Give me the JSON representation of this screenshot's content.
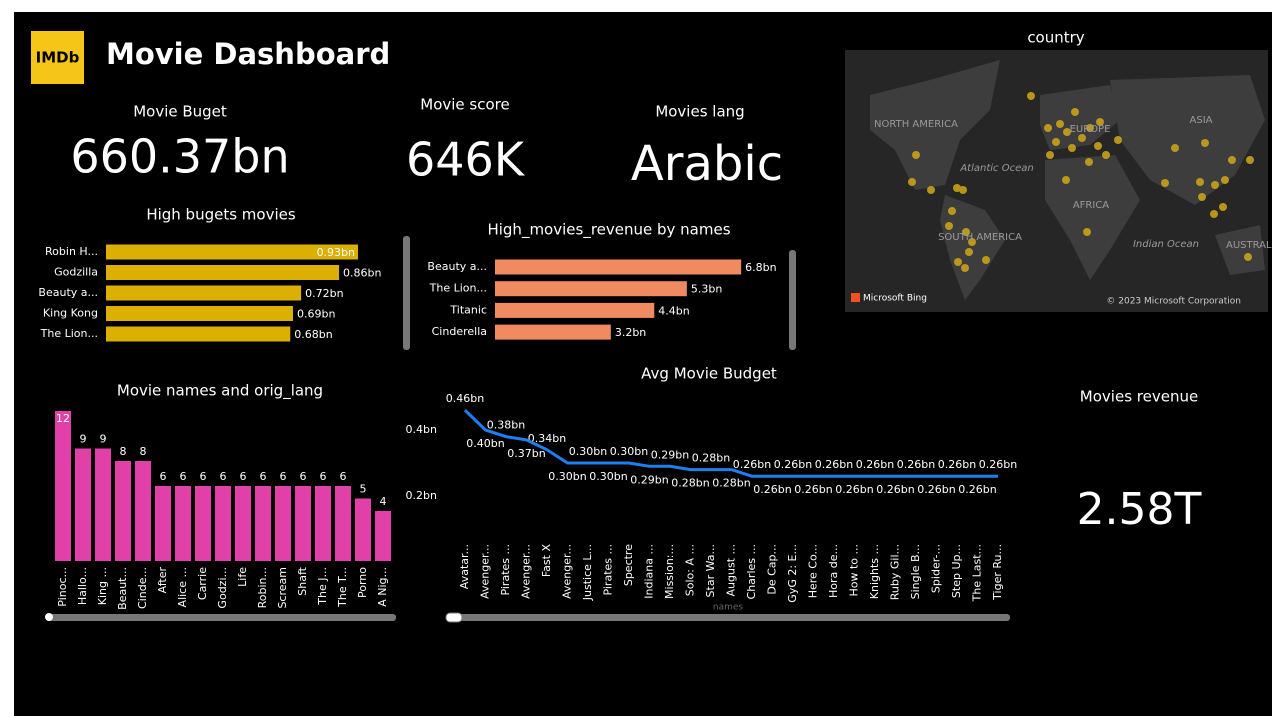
{
  "header": {
    "logo": "IMDb",
    "title": "Movie Dashboard"
  },
  "cards": [
    {
      "label": "Movie Buget",
      "value": "660.37bn"
    },
    {
      "label": "Movie score",
      "value": "646K"
    },
    {
      "label": "Movies lang",
      "value": "Arabic"
    },
    {
      "label": "Movies revenue",
      "value": "2.58T"
    }
  ],
  "map": {
    "title": "country",
    "labels": [
      "NORTH AMERICA",
      "EUROPE",
      "ASIA",
      "Atlantic Ocean",
      "AFRICA",
      "SOUTH AMERICA",
      "Indian Ocean",
      "AUSTRAL"
    ],
    "provider": "Microsoft Bing",
    "copyright": "© 2023 Microsoft Corporation"
  },
  "chart_data": [
    {
      "type": "hbar",
      "title": "High bugets movies",
      "categories": [
        "Robin H...",
        "Godzilla",
        "Beauty a...",
        "King Kong",
        "The Lion..."
      ],
      "values": [
        0.93,
        0.86,
        0.72,
        0.69,
        0.68
      ],
      "value_labels": [
        "0.93bn",
        "0.86bn",
        "0.72bn",
        "0.69bn",
        "0.68bn"
      ],
      "color": "#dcb000"
    },
    {
      "type": "hbar",
      "title": "High_movies_revenue by names",
      "categories": [
        "Beauty a...",
        "The Lion...",
        "Titanic",
        "Cinderella"
      ],
      "values": [
        6.8,
        5.3,
        4.4,
        3.2
      ],
      "value_labels": [
        "6.8bn",
        "5.3bn",
        "4.4bn",
        "3.2bn"
      ],
      "color": "#f08a60"
    },
    {
      "type": "column",
      "title": "Movie names and orig_lang",
      "categories": [
        "Pinoc...",
        "Hallo...",
        "King ...",
        "Beaut...",
        "Cinde...",
        "After",
        "Alice ...",
        "Carrie",
        "Godzi...",
        "Life",
        "Robin...",
        "Scream",
        "Shaft",
        "The J...",
        "The T...",
        "Porno",
        "A Nig..."
      ],
      "values": [
        12,
        9,
        9,
        8,
        8,
        6,
        6,
        6,
        6,
        6,
        6,
        6,
        6,
        6,
        6,
        5,
        4
      ],
      "color": "#e040a8"
    },
    {
      "type": "line",
      "title": "Avg Movie Budget",
      "x_label": "names",
      "categories": [
        "Avatar...",
        "Avenger...",
        "Pirates ...",
        "Avenger...",
        "Fast X",
        "Avenger...",
        "Justice L...",
        "Pirates ...",
        "Spectre",
        "Indiana ...",
        "Mission:...",
        "Solo: A ...",
        "Star Wa...",
        "August ...",
        "Charles ...",
        "De Cap...",
        "GyG 2: E...",
        "Here Co...",
        "Hora de...",
        "How to ...",
        "Knights ...",
        "Ruby Gil...",
        "Single B...",
        "Spider-...",
        "Step Up...",
        "The Last...",
        "Tiger Ru..."
      ],
      "values": [
        0.46,
        0.4,
        0.38,
        0.37,
        0.34,
        0.3,
        0.3,
        0.3,
        0.3,
        0.29,
        0.29,
        0.28,
        0.28,
        0.28,
        0.26,
        0.26,
        0.26,
        0.26,
        0.26,
        0.26,
        0.26,
        0.26,
        0.26,
        0.26,
        0.26,
        0.26,
        0.26
      ],
      "value_labels": [
        "0.46bn",
        "0.40bn",
        "0.38bn",
        "0.37bn",
        "0.34bn",
        "0.30bn",
        "0.30bn",
        "0.30bn",
        "0.30bn",
        "0.29bn",
        "0.29bn",
        "0.28bn",
        "0.28bn",
        "0.28bn",
        "0.26bn",
        "0.26bn",
        "0.26bn",
        "0.26bn",
        "0.26bn",
        "0.26bn",
        "0.26bn",
        "0.26bn",
        "0.26bn",
        "0.26bn",
        "0.26bn",
        "0.26bn",
        "0.26bn"
      ],
      "ylim": [
        0,
        0.5
      ],
      "yticks": [
        {
          "value": 0.2,
          "label": "0.2bn"
        },
        {
          "value": 0.4,
          "label": "0.4bn"
        }
      ],
      "color": "#1e7ff0"
    }
  ]
}
